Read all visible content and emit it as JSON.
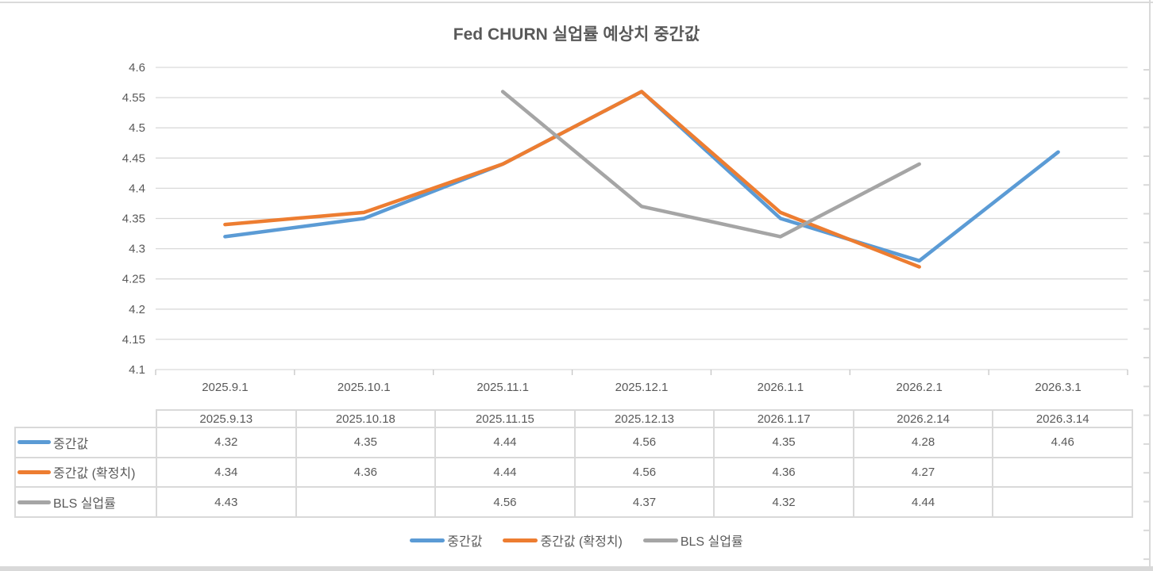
{
  "chart_data": {
    "type": "line",
    "title": "Fed CHURN 실업률 예상치 중간값",
    "categories": [
      "2025.9.1",
      "2025.10.1",
      "2025.11.1",
      "2025.12.1",
      "2026.1.1",
      "2026.2.1",
      "2026.3.1"
    ],
    "series": [
      {
        "name": "중간값",
        "color": "#5B9BD5",
        "values": [
          4.32,
          4.35,
          4.44,
          4.56,
          4.35,
          4.28,
          4.46
        ]
      },
      {
        "name": "중간값 (확정치)",
        "color": "#ED7D31",
        "values": [
          4.34,
          4.36,
          4.44,
          4.56,
          4.36,
          4.27,
          null
        ]
      },
      {
        "name": "BLS 실업률",
        "color": "#A5A5A5",
        "values": [
          4.43,
          null,
          4.56,
          4.37,
          4.32,
          4.44,
          null
        ]
      }
    ],
    "ylim": [
      4.1,
      4.6
    ],
    "y_tick_step": 0.05,
    "y_tick_labels": [
      "4.6",
      "4.55",
      "4.5",
      "4.45",
      "4.4",
      "4.35",
      "4.3",
      "4.25",
      "4.2",
      "4.15",
      "4.1"
    ],
    "grid": "horizontal",
    "gridline_color": "#D9D9D9",
    "tick_color": "#C6C6C6",
    "axis_text_color": "#595959",
    "legend_position": "bottom"
  },
  "data_table": {
    "date_header": [
      "2025.9.13",
      "2025.10.18",
      "2025.11.15",
      "2025.12.13",
      "2026.1.17",
      "2026.2.14",
      "2026.3.14"
    ],
    "rows": [
      {
        "label": "중간값",
        "color": "#5B9BD5",
        "values": [
          "4.32",
          "4.35",
          "4.44",
          "4.56",
          "4.35",
          "4.28",
          "4.46"
        ]
      },
      {
        "label": "중간값 (확정치)",
        "color": "#ED7D31",
        "values": [
          "4.34",
          "4.36",
          "4.44",
          "4.56",
          "4.36",
          "4.27",
          ""
        ]
      },
      {
        "label": "BLS 실업률",
        "color": "#A5A5A5",
        "values": [
          "4.43",
          "",
          "4.56",
          "4.37",
          "4.32",
          "4.44",
          ""
        ]
      }
    ]
  }
}
